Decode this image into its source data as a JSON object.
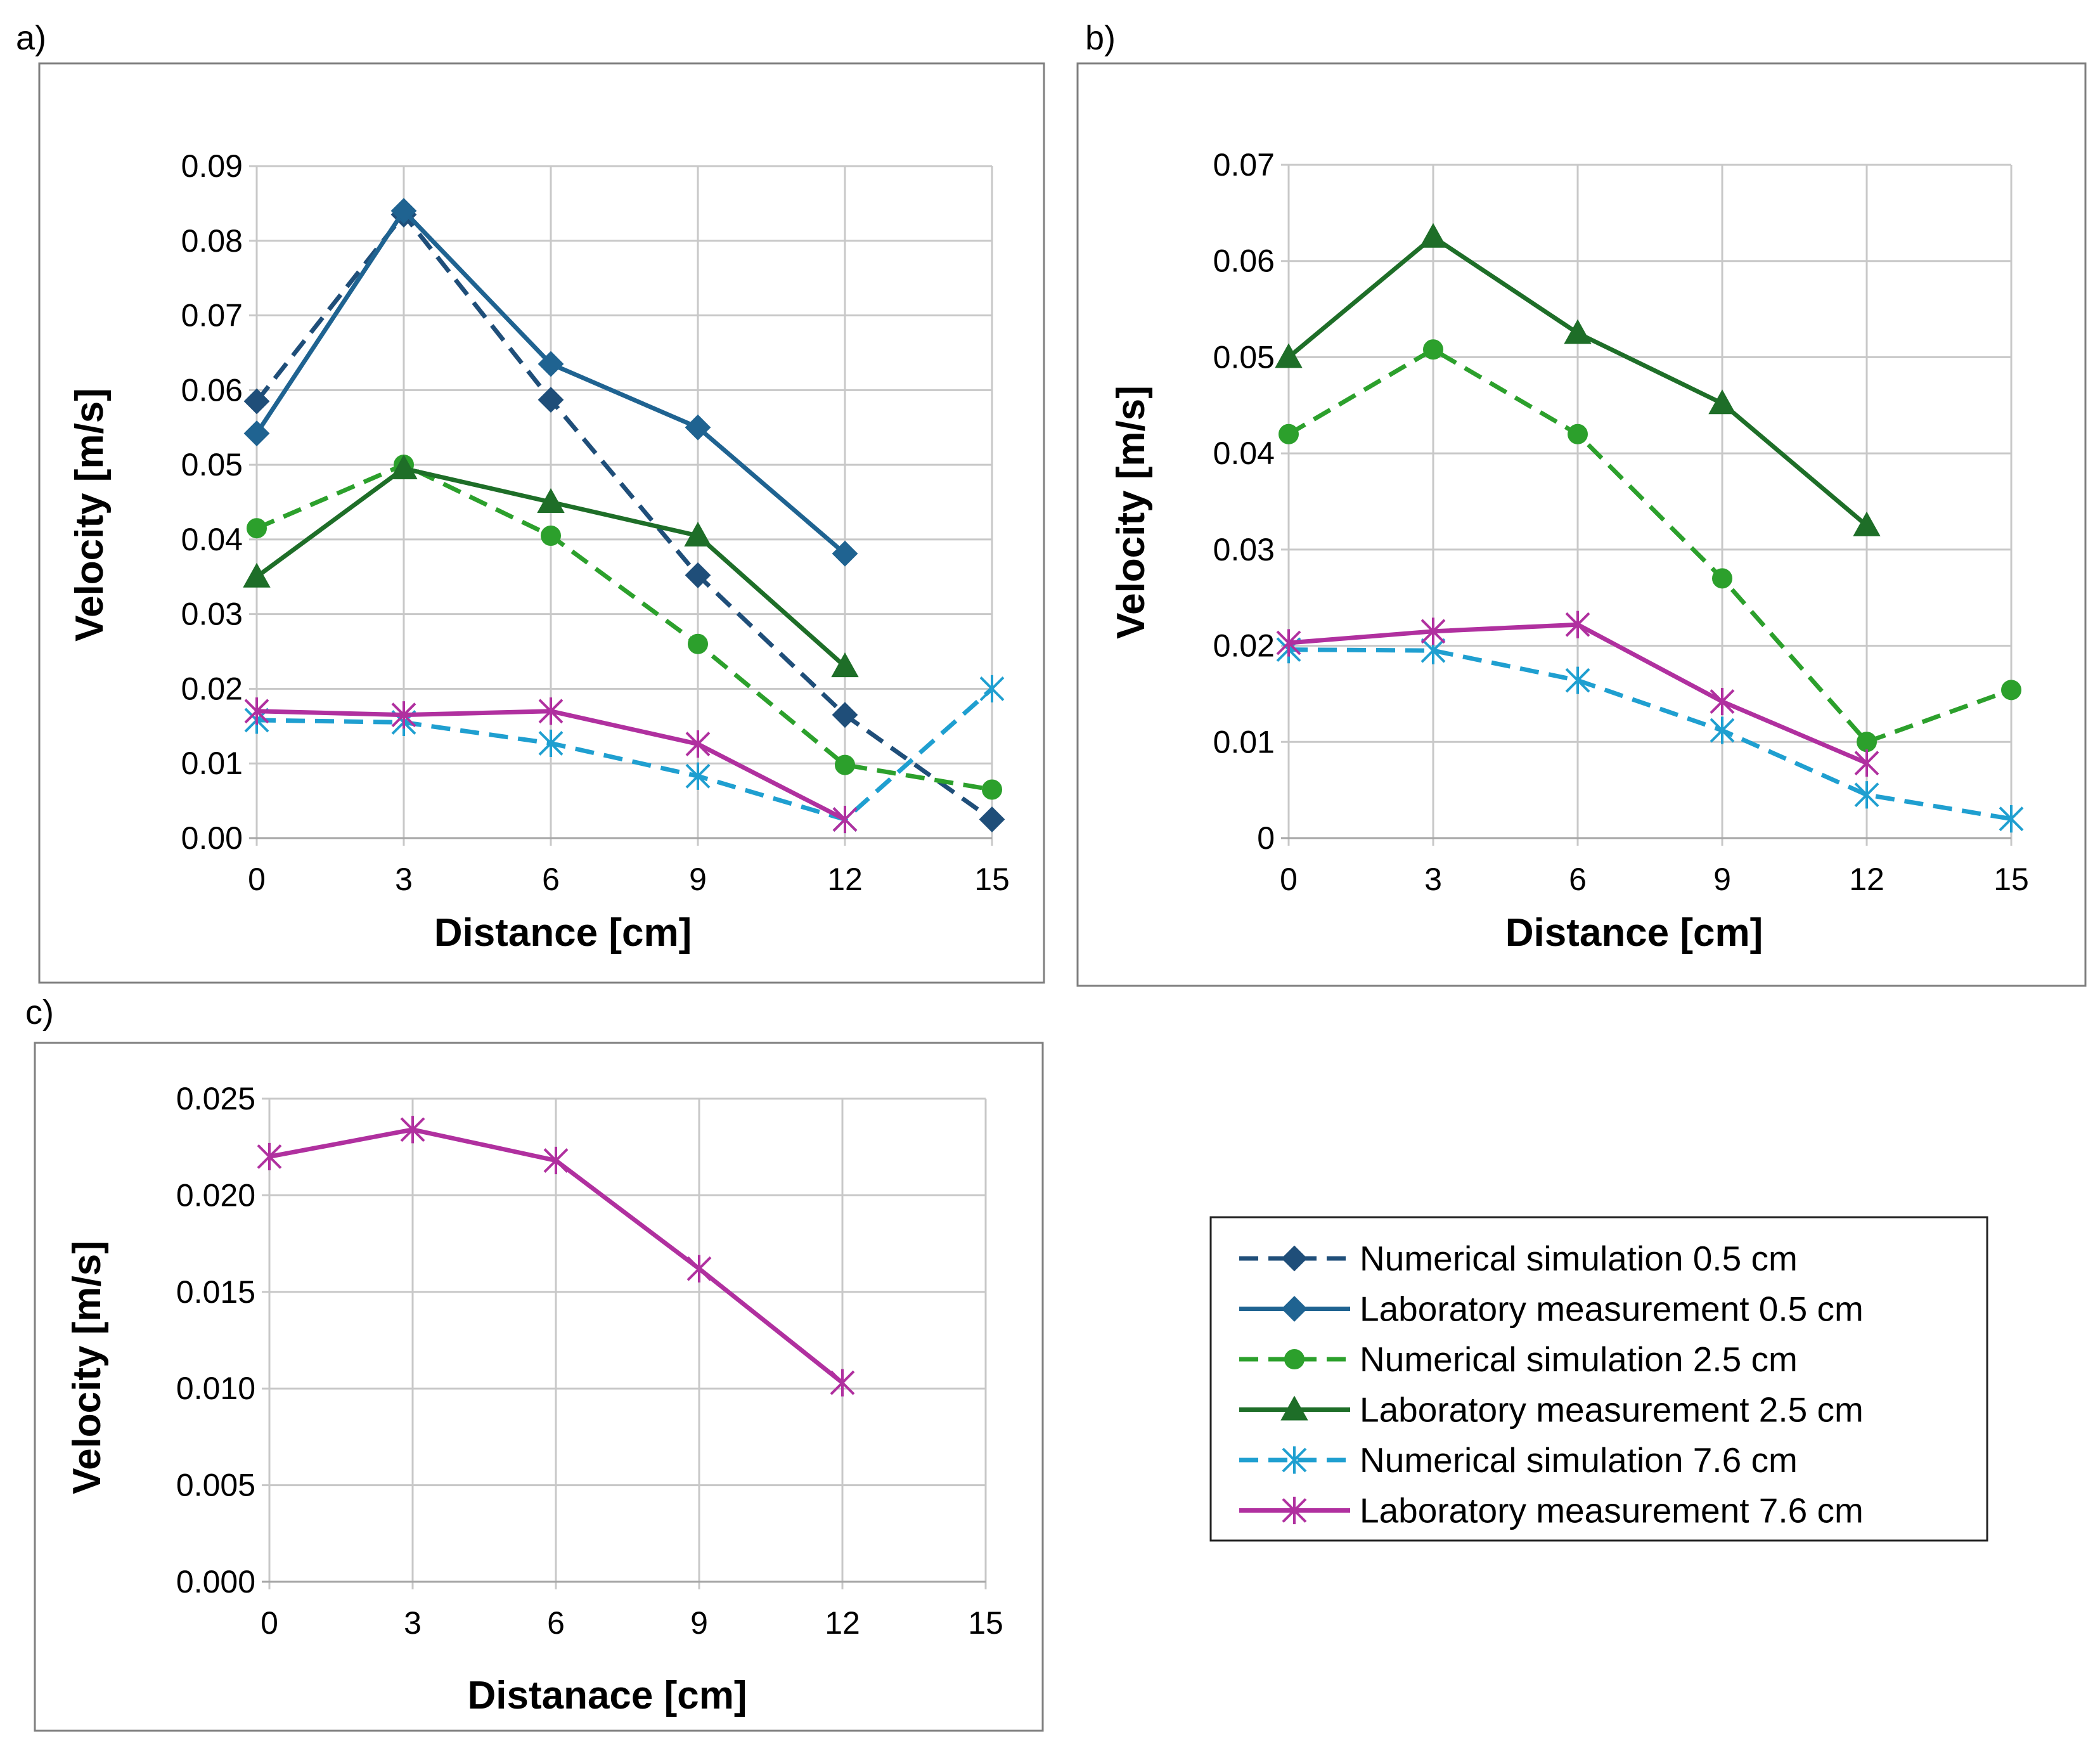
{
  "colors": {
    "sim_05": "#1f4e79",
    "lab_05": "#1f6391",
    "sim_25": "#2ca02c",
    "lab_25": "#1e6e28",
    "sim_76": "#1f9fd0",
    "lab_76": "#b0309f",
    "grid": "#c8c8c8",
    "frame": "#7f7f7f"
  },
  "legend": {
    "entries": [
      {
        "label": "Numerical simulation 0.5 cm",
        "color_key": "sim_05",
        "dash": true,
        "marker": "diamond"
      },
      {
        "label": "Laboratory measurement 0.5 cm",
        "color_key": "lab_05",
        "dash": false,
        "marker": "diamond"
      },
      {
        "label": "Numerical simulation 2.5 cm",
        "color_key": "sim_25",
        "dash": true,
        "marker": "circle"
      },
      {
        "label": "Laboratory measurement 2.5 cm",
        "color_key": "lab_25",
        "dash": false,
        "marker": "triangle"
      },
      {
        "label": "Numerical simulation 7.6 cm",
        "color_key": "sim_76",
        "dash": true,
        "marker": "star"
      },
      {
        "label": "Laboratory measurement 7.6 cm",
        "color_key": "lab_76",
        "dash": false,
        "marker": "star"
      }
    ]
  },
  "chart_data": [
    {
      "id": "a",
      "panel_label": "a)",
      "type": "line",
      "xlabel": "Distance [cm]",
      "ylabel": "Velocity [m/s]",
      "xlim": [
        0,
        15
      ],
      "ylim": [
        0,
        0.09
      ],
      "xticks": [
        0,
        3,
        6,
        9,
        12,
        15
      ],
      "xtick_labels": [
        "0",
        "3",
        "6",
        "9",
        "12",
        "15"
      ],
      "yticks": [
        0,
        0.01,
        0.02,
        0.03,
        0.04,
        0.05,
        0.06,
        0.07,
        0.08,
        0.09
      ],
      "ytick_labels": [
        "0.00",
        "0.01",
        "0.02",
        "0.03",
        "0.04",
        "0.05",
        "0.06",
        "0.07",
        "0.08",
        "0.09"
      ],
      "series": [
        {
          "name": "Numerical simulation 0.5 cm",
          "color_key": "sim_05",
          "dash": true,
          "marker": "diamond",
          "x": [
            0,
            3,
            6,
            9,
            12,
            15
          ],
          "values": [
            0.0585,
            0.0835,
            0.0587,
            0.0352,
            0.0165,
            0.0025
          ]
        },
        {
          "name": "Laboratory measurement 0.5 cm",
          "color_key": "lab_05",
          "dash": false,
          "marker": "diamond",
          "x": [
            0,
            3,
            6,
            9,
            12
          ],
          "values": [
            0.0542,
            0.084,
            0.0635,
            0.055,
            0.0381
          ]
        },
        {
          "name": "Numerical simulation 2.5 cm",
          "color_key": "sim_25",
          "dash": true,
          "marker": "circle",
          "x": [
            0,
            3,
            6,
            9,
            12,
            15
          ],
          "values": [
            0.0415,
            0.05,
            0.0405,
            0.026,
            0.0098,
            0.0065
          ]
        },
        {
          "name": "Laboratory measurement 2.5 cm",
          "color_key": "lab_25",
          "dash": false,
          "marker": "triangle",
          "x": [
            0,
            3,
            6,
            9,
            12
          ],
          "values": [
            0.035,
            0.0495,
            0.045,
            0.0405,
            0.023
          ]
        },
        {
          "name": "Numerical simulation 7.6 cm",
          "color_key": "sim_76",
          "dash": true,
          "marker": "star",
          "x": [
            0,
            3,
            6,
            9,
            12,
            15
          ],
          "values": [
            0.0158,
            0.0155,
            0.0127,
            0.0083,
            0.0025,
            0.02
          ]
        },
        {
          "name": "Laboratory measurement 7.6 cm",
          "color_key": "lab_76",
          "dash": false,
          "marker": "star",
          "x": [
            0,
            3,
            6,
            9,
            12
          ],
          "values": [
            0.017,
            0.0165,
            0.017,
            0.0126,
            0.0025
          ]
        }
      ]
    },
    {
      "id": "b",
      "panel_label": "b)",
      "type": "line",
      "xlabel": "Distance [cm]",
      "ylabel": "Velocity [m/s]",
      "xlim": [
        0,
        15
      ],
      "ylim": [
        0,
        0.07
      ],
      "xticks": [
        0,
        3,
        6,
        9,
        12,
        15
      ],
      "xtick_labels": [
        "0",
        "3",
        "6",
        "9",
        "12",
        "15"
      ],
      "yticks": [
        0,
        0.01,
        0.02,
        0.03,
        0.04,
        0.05,
        0.06,
        0.07
      ],
      "ytick_labels": [
        "0",
        "0.01",
        "0.02",
        "0.03",
        "0.04",
        "0.05",
        "0.06",
        "0.07"
      ],
      "series": [
        {
          "name": "Numerical simulation 2.5 cm",
          "color_key": "sim_25",
          "dash": true,
          "marker": "circle",
          "x": [
            0,
            3,
            6,
            9,
            12,
            15
          ],
          "values": [
            0.042,
            0.0508,
            0.042,
            0.027,
            0.01,
            0.0154
          ]
        },
        {
          "name": "Laboratory measurement 2.5 cm",
          "color_key": "lab_25",
          "dash": false,
          "marker": "triangle",
          "x": [
            0,
            3,
            6,
            9,
            12
          ],
          "values": [
            0.05,
            0.0625,
            0.0525,
            0.0452,
            0.0325
          ]
        },
        {
          "name": "Numerical simulation 7.6 cm",
          "color_key": "sim_76",
          "dash": true,
          "marker": "star",
          "x": [
            0,
            3,
            6,
            9,
            12,
            15
          ],
          "values": [
            0.0196,
            0.0195,
            0.0164,
            0.0112,
            0.0045,
            0.002
          ]
        },
        {
          "name": "Laboratory measurement 7.6 cm",
          "color_key": "lab_76",
          "dash": false,
          "marker": "star",
          "x": [
            0,
            3,
            6,
            9,
            12
          ],
          "values": [
            0.0203,
            0.0215,
            0.0222,
            0.0142,
            0.0078
          ]
        }
      ]
    },
    {
      "id": "c",
      "panel_label": "c)",
      "type": "line",
      "xlabel": "Distanace [cm]",
      "ylabel": "Velocity [m/s]",
      "xlim": [
        0,
        15
      ],
      "ylim": [
        0,
        0.025
      ],
      "xticks": [
        0,
        3,
        6,
        9,
        12,
        15
      ],
      "xtick_labels": [
        "0",
        "3",
        "6",
        "9",
        "12",
        "15"
      ],
      "yticks": [
        0,
        0.005,
        0.01,
        0.015,
        0.02,
        0.025
      ],
      "ytick_labels": [
        "0.000",
        "0.005",
        "0.010",
        "0.015",
        "0.020",
        "0.025"
      ],
      "series": [
        {
          "name": "Laboratory measurement 7.6 cm",
          "color_key": "lab_76",
          "dash": false,
          "marker": "star",
          "x": [
            0,
            3,
            6,
            9,
            12
          ],
          "values": [
            0.022,
            0.0234,
            0.0218,
            0.0162,
            0.0103
          ]
        }
      ]
    }
  ]
}
